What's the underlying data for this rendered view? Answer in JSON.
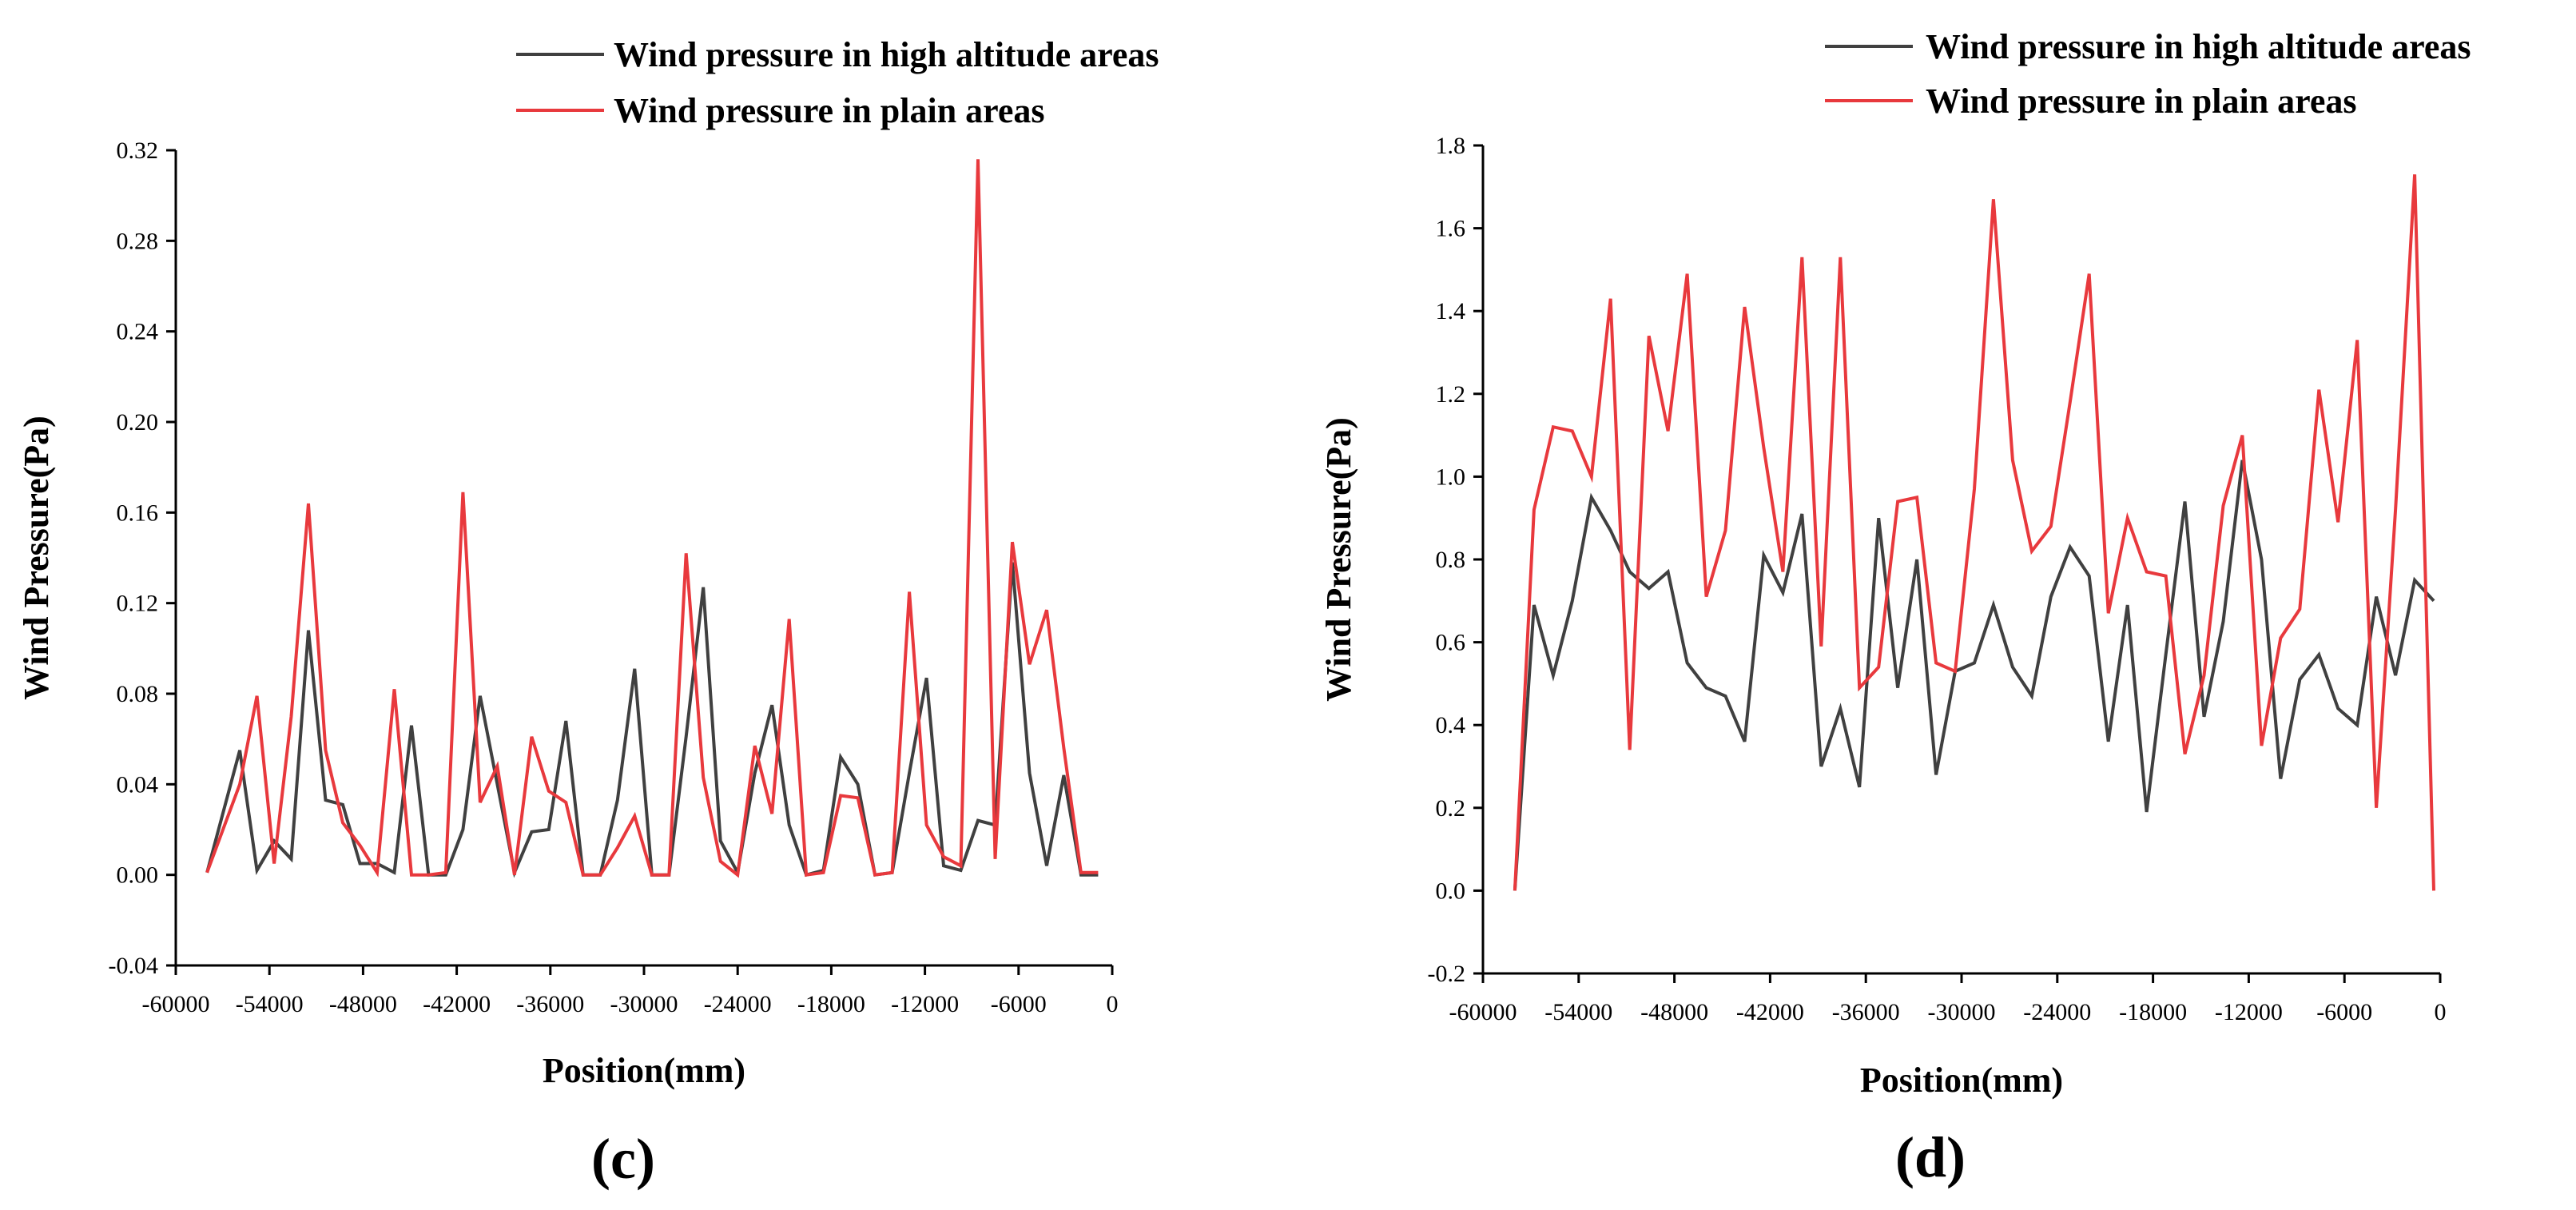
{
  "chart_data": [
    {
      "type": "line",
      "panel_label": "(c)",
      "xlabel": "Position(mm)",
      "ylabel": "Wind Pressure(Pa)",
      "xlim": [
        -60000,
        0
      ],
      "ylim": [
        -0.04,
        0.32
      ],
      "x_ticks": [
        -60000,
        -54000,
        -48000,
        -42000,
        -36000,
        -30000,
        -24000,
        -18000,
        -12000,
        -6000,
        0
      ],
      "y_ticks": [
        -0.04,
        0.0,
        0.04,
        0.08,
        0.12,
        0.16,
        0.2,
        0.24,
        0.28,
        0.32
      ],
      "x_tick_labels": [
        "-60000",
        "-54000",
        "-48000",
        "-42000",
        "-36000",
        "-30000",
        "-24000",
        "-18000",
        "-12000",
        "-6000",
        "0"
      ],
      "y_tick_labels": [
        "-0.04",
        "0.00",
        "0.04",
        "0.08",
        "0.12",
        "0.16",
        "0.20",
        "0.24",
        "0.28",
        "0.32"
      ],
      "legend_position": "top-right",
      "series": [
        {
          "name": "Wind pressure in high altitude areas",
          "color": "#404040",
          "x": [
            -58000,
            -55900,
            -54800,
            -53700,
            -52600,
            -51500,
            -50400,
            -49300,
            -48200,
            -47100,
            -46000,
            -44900,
            -43800,
            -42700,
            -41600,
            -40500,
            -39400,
            -38300,
            -37200,
            -36100,
            -35000,
            -33900,
            -32800,
            -31700,
            -30600,
            -29500,
            -28400,
            -27300,
            -26200,
            -25100,
            -24000,
            -22900,
            -21800,
            -20700,
            -19600,
            -18500,
            -17400,
            -16300,
            -15200,
            -14100,
            -13000,
            -11900,
            -10800,
            -9700,
            -8600,
            -7500,
            -6400,
            -5300,
            -4200,
            -3100,
            -2000,
            -900
          ],
          "values": [
            0.001,
            0.055,
            0.002,
            0.015,
            0.007,
            0.108,
            0.033,
            0.031,
            0.005,
            0.005,
            0.001,
            0.066,
            0.0,
            0.0,
            0.02,
            0.079,
            0.04,
            0.001,
            0.019,
            0.02,
            0.068,
            0.0,
            0.0,
            0.033,
            0.091,
            0.0,
            0.0,
            0.061,
            0.127,
            0.015,
            0.001,
            0.045,
            0.075,
            0.022,
            0.0,
            0.002,
            0.052,
            0.04,
            0.0,
            0.001,
            0.045,
            0.087,
            0.004,
            0.002,
            0.024,
            0.022,
            0.138,
            0.045,
            0.004,
            0.044,
            0.0,
            0.0
          ]
        },
        {
          "name": "Wind pressure in plain areas",
          "color": "#e8393d",
          "x": [
            -58000,
            -55900,
            -54800,
            -53700,
            -52600,
            -51500,
            -50400,
            -49300,
            -48200,
            -47100,
            -46000,
            -44900,
            -43800,
            -42700,
            -41600,
            -40500,
            -39400,
            -38300,
            -37200,
            -36100,
            -35000,
            -33900,
            -32800,
            -31700,
            -30600,
            -29500,
            -28400,
            -27300,
            -26200,
            -25100,
            -24000,
            -22900,
            -21800,
            -20700,
            -19600,
            -18500,
            -17400,
            -16300,
            -15200,
            -14100,
            -13000,
            -11900,
            -10800,
            -9700,
            -8600,
            -7500,
            -6400,
            -5300,
            -4200,
            -3100,
            -2000,
            -900
          ],
          "values": [
            0.001,
            0.04,
            0.079,
            0.005,
            0.07,
            0.164,
            0.055,
            0.023,
            0.013,
            0.001,
            0.082,
            0.0,
            0.0,
            0.001,
            0.169,
            0.032,
            0.048,
            0.0,
            0.061,
            0.037,
            0.032,
            0.0,
            0.0,
            0.012,
            0.026,
            0.0,
            0.0,
            0.142,
            0.043,
            0.006,
            0.0,
            0.057,
            0.027,
            0.113,
            0.0,
            0.001,
            0.035,
            0.034,
            0.0,
            0.001,
            0.125,
            0.022,
            0.008,
            0.004,
            0.316,
            0.007,
            0.147,
            0.093,
            0.117,
            0.056,
            0.001,
            0.001
          ]
        }
      ]
    },
    {
      "type": "line",
      "panel_label": "(d)",
      "xlabel": "Position(mm)",
      "ylabel": "Wind Pressure(Pa)",
      "xlim": [
        -60000,
        0
      ],
      "ylim": [
        -0.2,
        1.8
      ],
      "x_ticks": [
        -60000,
        -54000,
        -48000,
        -42000,
        -36000,
        -30000,
        -24000,
        -18000,
        -12000,
        -6000,
        0
      ],
      "y_ticks": [
        -0.2,
        0.0,
        0.2,
        0.4,
        0.6,
        0.8,
        1.0,
        1.2,
        1.4,
        1.6,
        1.8
      ],
      "x_tick_labels": [
        "-60000",
        "-54000",
        "-48000",
        "-42000",
        "-36000",
        "-30000",
        "-24000",
        "-18000",
        "-12000",
        "-6000",
        "0"
      ],
      "y_tick_labels": [
        "-0.2",
        "0.0",
        "0.2",
        "0.4",
        "0.6",
        "0.8",
        "1.0",
        "1.2",
        "1.4",
        "1.6",
        "1.8"
      ],
      "legend_position": "top-right",
      "series": [
        {
          "name": "Wind pressure in high altitude areas",
          "color": "#404040",
          "x": [
            -58000,
            -56800,
            -55600,
            -54400,
            -53200,
            -52000,
            -50800,
            -49600,
            -48400,
            -47200,
            -46000,
            -44800,
            -43600,
            -42400,
            -41200,
            -40000,
            -38800,
            -37600,
            -36400,
            -35200,
            -34000,
            -32800,
            -31600,
            -30400,
            -29200,
            -28000,
            -26800,
            -25600,
            -24400,
            -23200,
            -22000,
            -20800,
            -19600,
            -18400,
            -17200,
            -16000,
            -14800,
            -13600,
            -12400,
            -11200,
            -10000,
            -8800,
            -7600,
            -6400,
            -5200,
            -4000,
            -2800,
            -1600,
            -400
          ],
          "values": [
            0.0,
            0.69,
            0.52,
            0.7,
            0.95,
            0.87,
            0.77,
            0.73,
            0.77,
            0.55,
            0.49,
            0.47,
            0.36,
            0.81,
            0.72,
            0.91,
            0.3,
            0.44,
            0.25,
            0.9,
            0.49,
            0.8,
            0.28,
            0.53,
            0.55,
            0.69,
            0.54,
            0.47,
            0.71,
            0.83,
            0.76,
            0.36,
            0.69,
            0.19,
            0.57,
            0.94,
            0.42,
            0.65,
            1.04,
            0.8,
            0.27,
            0.51,
            0.57,
            0.44,
            0.4,
            0.71,
            0.52,
            0.75,
            0.7
          ]
        },
        {
          "name": "Wind pressure in plain areas",
          "color": "#e8393d",
          "x": [
            -58000,
            -56800,
            -55600,
            -54400,
            -53200,
            -52000,
            -50800,
            -49600,
            -48400,
            -47200,
            -46000,
            -44800,
            -43600,
            -42400,
            -41200,
            -40000,
            -38800,
            -37600,
            -36400,
            -35200,
            -34000,
            -32800,
            -31600,
            -30400,
            -29200,
            -28000,
            -26800,
            -25600,
            -24400,
            -23200,
            -22000,
            -20800,
            -19600,
            -18400,
            -17200,
            -16000,
            -14800,
            -13600,
            -12400,
            -11200,
            -10000,
            -8800,
            -7600,
            -6400,
            -5200,
            -4000,
            -2800,
            -1600,
            -400
          ],
          "values": [
            0.0,
            0.92,
            1.12,
            1.11,
            1.0,
            1.43,
            0.34,
            1.34,
            1.11,
            1.49,
            0.71,
            0.87,
            1.41,
            1.07,
            0.77,
            1.53,
            0.59,
            1.53,
            0.49,
            0.54,
            0.94,
            0.95,
            0.55,
            0.53,
            0.97,
            1.67,
            1.04,
            0.82,
            0.88,
            1.18,
            1.49,
            0.67,
            0.9,
            0.77,
            0.76,
            0.33,
            0.52,
            0.93,
            1.1,
            0.35,
            0.61,
            0.68,
            1.21,
            0.89,
            1.33,
            0.2,
            0.92,
            1.73,
            0.0
          ]
        }
      ]
    }
  ]
}
